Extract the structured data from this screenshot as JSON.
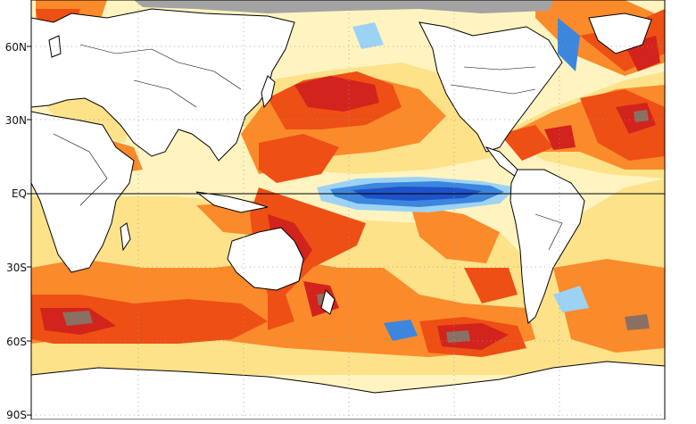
{
  "map": {
    "latitude_labels": [
      "60N",
      "30N",
      "EQ",
      "30S",
      "60S",
      "90S"
    ],
    "projection": "equirectangular, Pacific-centered",
    "colors": {
      "dark_red": "#d2231c",
      "red_orange": "#ee4f14",
      "orange": "#fb8a2b",
      "light_yellow": "#fde28a",
      "pale_yellow": "#fff4c0",
      "light_blue": "#9cd3f5",
      "blue": "#3c86de",
      "dark_blue": "#1f52c9",
      "brown_grey": "#8a7062",
      "masked_ice": "#a3a3a3",
      "land": "#ffffff",
      "coastline": "#000000"
    },
    "features": {
      "equator_line": true,
      "dotted_grid": true,
      "equatorial_pacific_cold_tongue": true,
      "polar_mask": true
    }
  }
}
